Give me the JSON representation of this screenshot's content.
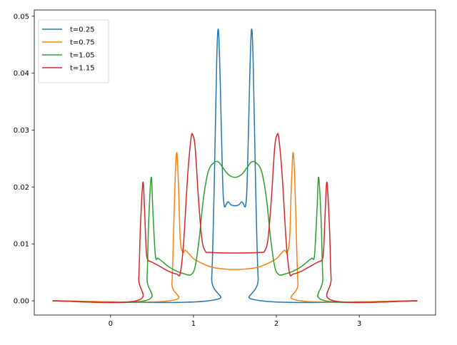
{
  "chart_data": {
    "type": "line",
    "title": "",
    "xlabel": "",
    "ylabel": "",
    "xlim": [
      -0.92,
      3.92
    ],
    "ylim": [
      -0.0025,
      0.0511
    ],
    "xticks": [
      0,
      1,
      2,
      3
    ],
    "xtick_labels": [
      "0",
      "1",
      "2",
      "3"
    ],
    "yticks": [
      0,
      0.01,
      0.02,
      0.03,
      0.04,
      0.05
    ],
    "ytick_labels": [
      "0.00",
      "0.01",
      "0.02",
      "0.03",
      "0.04",
      "0.05"
    ],
    "grid": false,
    "legend_position": "upper-left",
    "series": [
      {
        "name": "t=0.25",
        "color": "#1f77b4",
        "x": [
          -0.7,
          1.18,
          1.22,
          1.25,
          1.28,
          1.3,
          1.32,
          1.35,
          1.37,
          1.4,
          1.42,
          1.45,
          1.5,
          1.55,
          1.58,
          1.6,
          1.63,
          1.65,
          1.68,
          1.7,
          1.72,
          1.75,
          1.78,
          1.82,
          3.7
        ],
        "y": [
          0,
          0,
          0.004,
          0.02,
          0.042,
          0.0477,
          0.04,
          0.022,
          0.0168,
          0.0171,
          0.0174,
          0.0169,
          0.0167,
          0.0169,
          0.0174,
          0.0171,
          0.0168,
          0.022,
          0.04,
          0.0477,
          0.042,
          0.02,
          0.004,
          0,
          0
        ]
      },
      {
        "name": "t=0.75",
        "color": "#ff7f0e",
        "x": [
          -0.7,
          0.71,
          0.74,
          0.76,
          0.78,
          0.8,
          0.82,
          0.84,
          0.87,
          0.9,
          0.95,
          1.0,
          1.1,
          1.2,
          1.3,
          1.5,
          1.7,
          1.8,
          1.9,
          2.0,
          2.05,
          2.1,
          2.13,
          2.16,
          2.18,
          2.2,
          2.22,
          2.24,
          2.26,
          2.29,
          3.7
        ],
        "y": [
          0,
          0,
          0.003,
          0.012,
          0.022,
          0.026,
          0.02,
          0.011,
          0.0085,
          0.0089,
          0.0082,
          0.0074,
          0.0066,
          0.006,
          0.0057,
          0.0055,
          0.0057,
          0.006,
          0.0066,
          0.0074,
          0.0082,
          0.0089,
          0.0085,
          0.011,
          0.02,
          0.026,
          0.022,
          0.012,
          0.003,
          0,
          0
        ]
      },
      {
        "name": "t=1.05",
        "color": "#2ca02c",
        "x": [
          -0.7,
          0.41,
          0.44,
          0.46,
          0.49,
          0.51,
          0.54,
          0.57,
          0.6,
          0.7,
          0.8,
          0.9,
          0.97,
          1.02,
          1.07,
          1.12,
          1.18,
          1.25,
          1.3,
          1.35,
          1.42,
          1.5,
          1.58,
          1.65,
          1.7,
          1.75,
          1.82,
          1.88,
          1.93,
          1.98,
          2.03,
          2.1,
          2.2,
          2.3,
          2.4,
          2.43,
          2.46,
          2.49,
          2.51,
          2.54,
          2.56,
          2.59,
          3.7
        ],
        "y": [
          0,
          0,
          0.004,
          0.014,
          0.0217,
          0.016,
          0.008,
          0.0075,
          0.0072,
          0.006,
          0.0052,
          0.0047,
          0.0046,
          0.006,
          0.011,
          0.018,
          0.0228,
          0.0243,
          0.0244,
          0.0235,
          0.0222,
          0.0217,
          0.0222,
          0.0235,
          0.0244,
          0.0243,
          0.0228,
          0.018,
          0.011,
          0.006,
          0.0046,
          0.0047,
          0.0052,
          0.006,
          0.0072,
          0.0075,
          0.008,
          0.016,
          0.0217,
          0.014,
          0.004,
          0,
          0
        ]
      },
      {
        "name": "t=1.15",
        "color": "#d62728",
        "x": [
          -0.7,
          0.31,
          0.34,
          0.36,
          0.39,
          0.41,
          0.43,
          0.45,
          0.5,
          0.6,
          0.7,
          0.8,
          0.84,
          0.88,
          0.93,
          0.97,
          0.99,
          1.02,
          1.06,
          1.1,
          1.14,
          1.2,
          1.5,
          1.8,
          1.86,
          1.9,
          1.94,
          1.98,
          2.01,
          2.03,
          2.07,
          2.12,
          2.16,
          2.2,
          2.3,
          2.4,
          2.5,
          2.55,
          2.57,
          2.59,
          2.61,
          2.64,
          2.66,
          2.69,
          3.7
        ],
        "y": [
          0,
          0,
          0.004,
          0.013,
          0.0208,
          0.016,
          0.009,
          0.0072,
          0.0068,
          0.006,
          0.0052,
          0.0047,
          0.0048,
          0.01,
          0.022,
          0.0285,
          0.0292,
          0.027,
          0.018,
          0.011,
          0.0088,
          0.0085,
          0.0084,
          0.0085,
          0.0088,
          0.011,
          0.018,
          0.027,
          0.0292,
          0.0285,
          0.022,
          0.01,
          0.0048,
          0.0047,
          0.0052,
          0.006,
          0.0068,
          0.0072,
          0.009,
          0.016,
          0.0208,
          0.013,
          0.004,
          0,
          0
        ]
      }
    ]
  }
}
